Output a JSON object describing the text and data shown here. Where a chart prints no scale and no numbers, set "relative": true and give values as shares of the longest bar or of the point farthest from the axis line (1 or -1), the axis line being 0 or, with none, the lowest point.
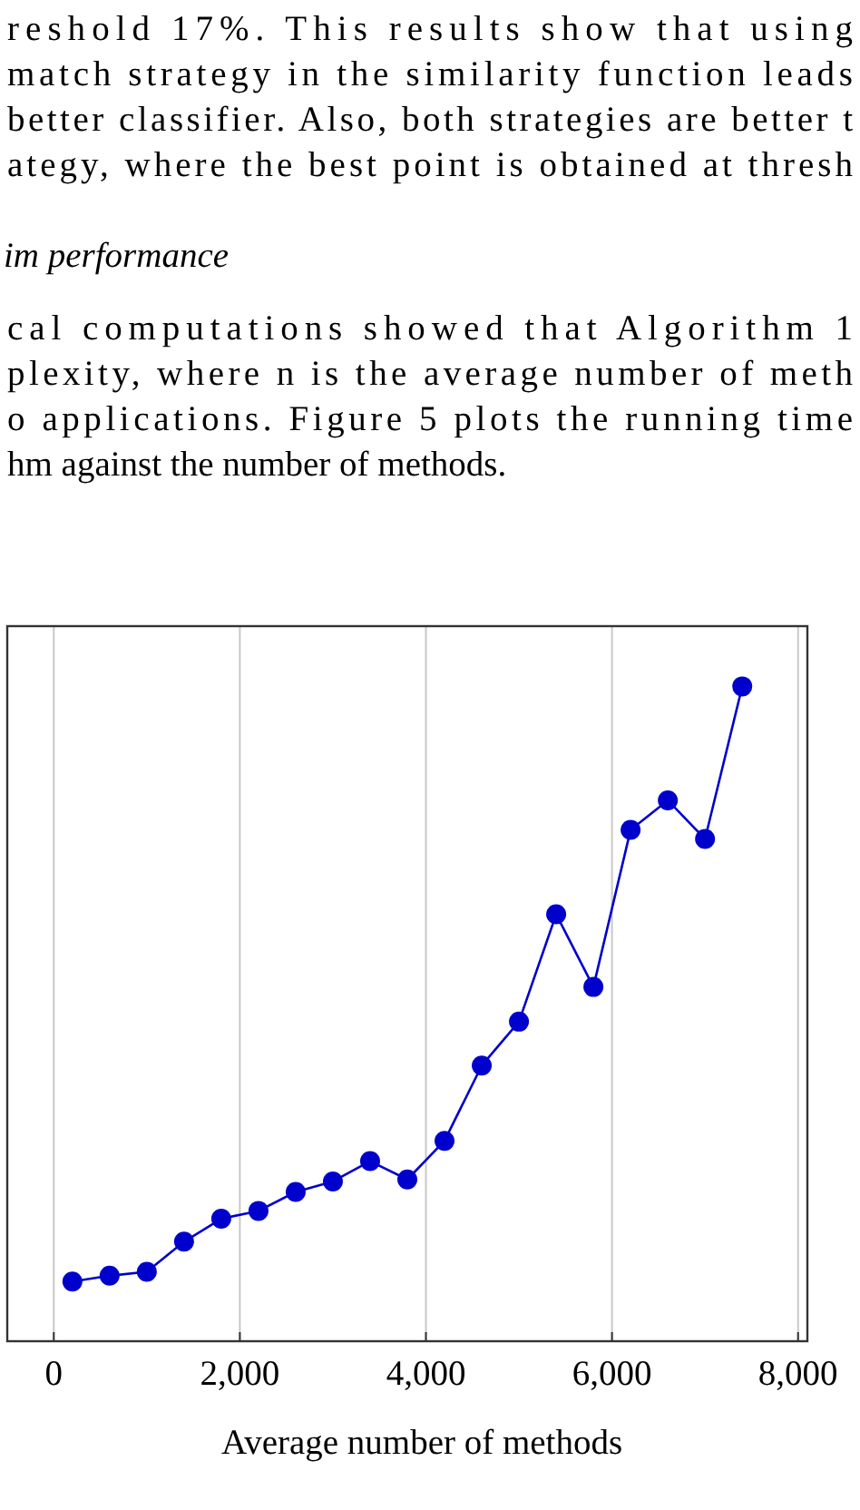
{
  "chart_data": {
    "type": "line",
    "xlabel": "Average number of methods",
    "relative": true,
    "annotations": [
      "reshold 17%. This results show that using",
      "match strategy in the similarity function leads",
      "better classifier. Also, both strategies are better t",
      "ategy, where the best point is obtained at thresh",
      "im performance",
      "cal computations showed that Algorithm 1",
      "plexity, where n is the average number of meth",
      "o applications. Figure 5 plots the running time",
      "hm against the number of methods."
    ],
    "x": [
      200,
      600,
      1000,
      1400,
      1800,
      2200,
      2600,
      3000,
      3400,
      3800,
      4200,
      4600,
      5000,
      5400,
      5800,
      6200,
      6600,
      7000,
      7400
    ],
    "series": [
      {
        "color": "#0000cc",
        "values": [
          0.091,
          0.1,
          0.106,
          0.152,
          0.187,
          0.199,
          0.228,
          0.244,
          0.275,
          0.247,
          0.306,
          0.421,
          0.488,
          0.652,
          0.541,
          0.781,
          0.826,
          0.767,
          1
        ]
      }
    ],
    "xlim": [
      -500,
      8100
    ],
    "xticks": [
      0,
      {
        "value": 2000,
        "label": "2,000"
      },
      {
        "value": 4000,
        "label": "4,000"
      },
      {
        "value": 6000,
        "label": "6,000"
      },
      {
        "value": 8000,
        "label": "8,000"
      }
    ],
    "grid": "x",
    "marker": "circle",
    "line_style": "solid"
  }
}
